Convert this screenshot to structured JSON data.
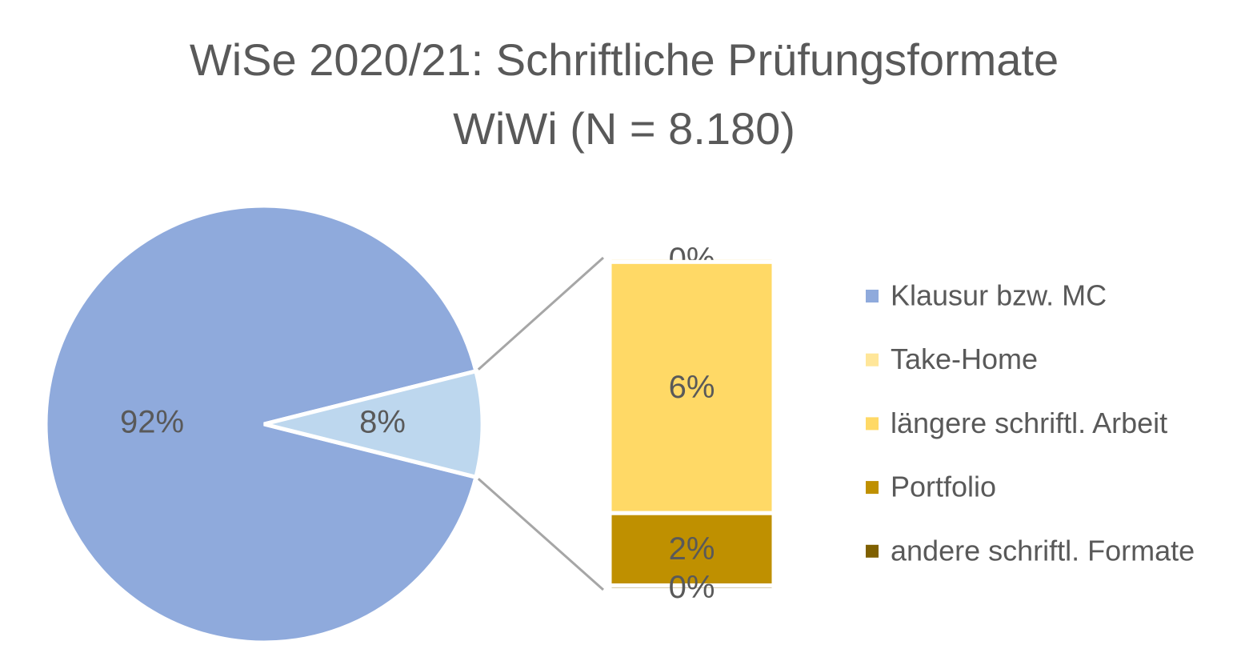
{
  "chart_data": {
    "type": "bar-of-pie",
    "title": "WiSe 2020/21: Schriftliche Prüfungsformate WiWi (N = 8.180)",
    "categories": [
      "Klausur bzw. MC",
      "Take-Home",
      "längere schriftl. Arbeit",
      "Portfolio",
      "andere schriftl. Formate"
    ],
    "values": [
      92.2,
      0.1,
      5.9,
      1.7,
      0.1
    ],
    "value_labels": [
      "92%",
      "0%",
      "6%",
      "2%",
      "0%"
    ],
    "colors": [
      "#8faadc",
      "#ffe699",
      "#ffd966",
      "#bf9000",
      "#7f6000"
    ],
    "other_value": 7.8,
    "other_label": "8%",
    "other_color": "#bdd7ee",
    "legend": "right"
  }
}
